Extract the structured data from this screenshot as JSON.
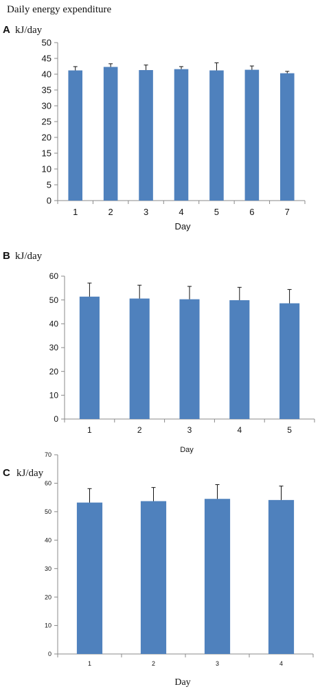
{
  "figure_title": "Daily energy expenditure",
  "chart_data": [
    {
      "panel": "A",
      "type": "bar",
      "ylabel": "kJ/day",
      "xlabel": "Day",
      "categories": [
        "1",
        "2",
        "3",
        "4",
        "5",
        "6",
        "7"
      ],
      "values": [
        41.2,
        42.3,
        41.3,
        41.6,
        41.2,
        41.4,
        40.3
      ],
      "error": [
        1.2,
        1.0,
        1.6,
        0.8,
        2.4,
        1.2,
        0.6
      ],
      "ylim": [
        0,
        50
      ],
      "yticks": [
        "0",
        "5",
        "10",
        "15",
        "20",
        "25",
        "30",
        "35",
        "40",
        "45",
        "50"
      ],
      "ytick_values": [
        0,
        5,
        10,
        15,
        20,
        25,
        30,
        35,
        40,
        45,
        50
      ],
      "grid": false,
      "bar_color": "#4f81bd"
    },
    {
      "panel": "B",
      "type": "bar",
      "ylabel": "kJ/day",
      "xlabel": "Day",
      "categories": [
        "1",
        "2",
        "3",
        "4",
        "5"
      ],
      "values": [
        51.4,
        50.6,
        50.3,
        49.9,
        48.6
      ],
      "error": [
        5.7,
        5.6,
        5.4,
        5.4,
        5.8
      ],
      "ylim": [
        0,
        60
      ],
      "yticks": [
        "0",
        "10",
        "20",
        "30",
        "40",
        "50",
        "60"
      ],
      "ytick_values": [
        0,
        10,
        20,
        30,
        40,
        50,
        60
      ],
      "grid": false,
      "bar_color": "#4f81bd"
    },
    {
      "panel": "C",
      "type": "bar",
      "ylabel": "kJ/day",
      "xlabel": "Day",
      "categories": [
        "1",
        "2",
        "3",
        "4"
      ],
      "values": [
        53.2,
        53.7,
        54.5,
        54.1
      ],
      "error": [
        4.9,
        4.8,
        5.0,
        4.9
      ],
      "ylim": [
        0,
        70
      ],
      "yticks": [
        "0",
        "10",
        "20",
        "30",
        "40",
        "50",
        "60",
        "70"
      ],
      "ytick_values": [
        0,
        10,
        20,
        30,
        40,
        50,
        60,
        70
      ],
      "grid": false,
      "bar_color": "#4f81bd"
    }
  ]
}
